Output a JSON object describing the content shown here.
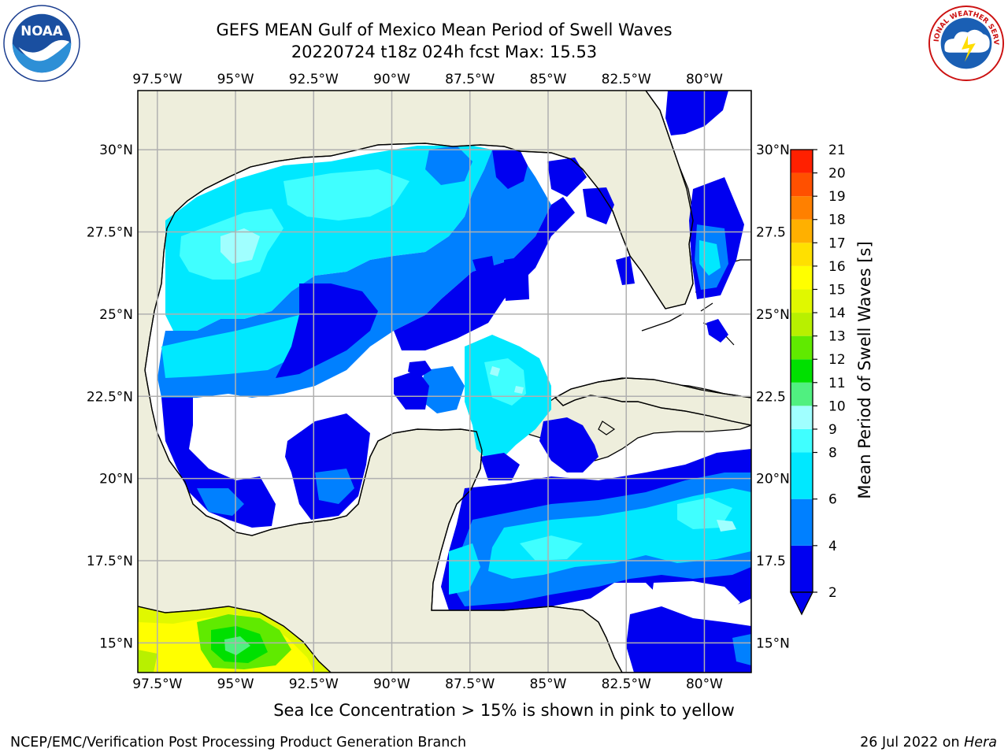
{
  "title_line1": "GEFS MEAN Gulf of Mexico Mean Period of Swell Waves",
  "title_line2": "20220724 t18z 024h fcst   Max: 15.53",
  "map": {
    "lon_labels": [
      "97.5°W",
      "95°W",
      "92.5°W",
      "90°W",
      "87.5°W",
      "85°W",
      "82.5°W",
      "80°W"
    ],
    "lat_labels_left": [
      "30°N",
      "27.5°N",
      "25°N",
      "22.5°N",
      "20°N",
      "17.5°N",
      "15°N"
    ],
    "lat_labels_right": [
      "30°N",
      "27.5",
      "25°N",
      "22.5",
      "20°N",
      "17.5",
      "15°N"
    ],
    "lon_range": [
      -98.125,
      -78.5
    ],
    "lat_range": [
      14.1,
      31.8
    ],
    "colors": {
      "land": "#eeeedc",
      "ocean_undefined": "#ffffff",
      "grid": "#b0b0b0",
      "coast": "#000000"
    }
  },
  "colorbar": {
    "label": "Mean Period of Swell Waves [s]",
    "ticks": [
      "2",
      "4",
      "6",
      "8",
      "9",
      "10",
      "11",
      "12",
      "13",
      "14",
      "15",
      "16",
      "17",
      "18",
      "19",
      "20",
      "21"
    ],
    "tick_values": [
      2,
      4,
      6,
      8,
      9,
      10,
      11,
      12,
      13,
      14,
      15,
      16,
      17,
      18,
      19,
      20,
      21
    ],
    "colors": [
      "#0000f0",
      "#0080ff",
      "#00e8ff",
      "#40ffff",
      "#a0ffff",
      "#50f080",
      "#00e000",
      "#60ea00",
      "#b8f000",
      "#e0f800",
      "#ffff00",
      "#ffe000",
      "#ffb000",
      "#ff8000",
      "#ff5000",
      "#ff2000"
    ]
  },
  "chart_data": {
    "type": "heatmap",
    "title": "GEFS MEAN Gulf of Mexico Mean Period of Swell Waves",
    "subtitle": "20220724 t18z 024h fcst   Max: 15.53",
    "colorbar_label": "Mean Period of Swell Waves [s]",
    "value_range": [
      2,
      21
    ],
    "max_value": 15.53,
    "lon_ticks": [
      -97.5,
      -95,
      -92.5,
      -90,
      -87.5,
      -85,
      -82.5,
      -80
    ],
    "lat_ticks": [
      30,
      27.5,
      25,
      22.5,
      20,
      17.5,
      15
    ],
    "grid": true,
    "regions": [
      {
        "lon": [
          -96.8,
          -88.5
        ],
        "lat": [
          24.8,
          29.5
        ],
        "period_s": 6
      },
      {
        "lon": [
          -95.5,
          -92.5
        ],
        "lat": [
          25.5,
          28.5
        ],
        "period_s": 8
      },
      {
        "lon": [
          -97.7,
          -95.2
        ],
        "lat": [
          22.6,
          25.0
        ],
        "period_s": 6
      },
      {
        "lon": [
          -92.5,
          -88.8
        ],
        "lat": [
          22.9,
          25.4
        ],
        "period_s": 4
      },
      {
        "lon": [
          -97.3,
          -93.7
        ],
        "lat": [
          19.2,
          22.4
        ],
        "period_s": 2
      },
      {
        "lon": [
          -93.3,
          -90.8
        ],
        "lat": [
          19.3,
          21.4
        ],
        "period_s": 2
      },
      {
        "lon": [
          -87.5,
          -85.5
        ],
        "lat": [
          20.5,
          24.0
        ],
        "period_s": 6
      },
      {
        "lon": [
          -86.5,
          -85.8
        ],
        "lat": [
          22.4,
          23.2
        ],
        "period_s": 8
      },
      {
        "lon": [
          -88.4,
          -84.8
        ],
        "lat": [
          28.0,
          30.3
        ],
        "period_s": 2
      },
      {
        "lon": [
          -81.5,
          -79.0
        ],
        "lat": [
          29.5,
          31.9
        ],
        "period_s": 2
      },
      {
        "lon": [
          -80.3,
          -78.8
        ],
        "lat": [
          25.6,
          28.5
        ],
        "period_s": 4
      },
      {
        "lon": [
          -87.5,
          -78.5
        ],
        "lat": [
          16.0,
          20.5
        ],
        "period_s": 4
      },
      {
        "lon": [
          -85.5,
          -78.5
        ],
        "lat": [
          16.8,
          19.5
        ],
        "period_s": 6
      },
      {
        "lon": [
          -81.5,
          -78.5
        ],
        "lat": [
          14.1,
          15.7
        ],
        "period_s": 2
      },
      {
        "lon": [
          -98.1,
          -92.5
        ],
        "lat": [
          14.1,
          16.0
        ],
        "period_s": 14
      },
      {
        "lon": [
          -96.0,
          -93.0
        ],
        "lat": [
          14.1,
          15.2
        ],
        "period_s": 11
      }
    ]
  },
  "footer_note": "Sea Ice Concentration > 15% is shown in pink to yellow",
  "footer_left": "NCEP/EMC/Verification Post Processing Product Generation Branch",
  "footer_right_prefix": "26 Jul 2022 on ",
  "footer_right_host": "Hera",
  "logos": {
    "left_icon": "noaa-logo",
    "right_icon": "nws-logo",
    "left_text": "NOAA",
    "right_text": "NATIONAL WEATHER SERVICE"
  }
}
